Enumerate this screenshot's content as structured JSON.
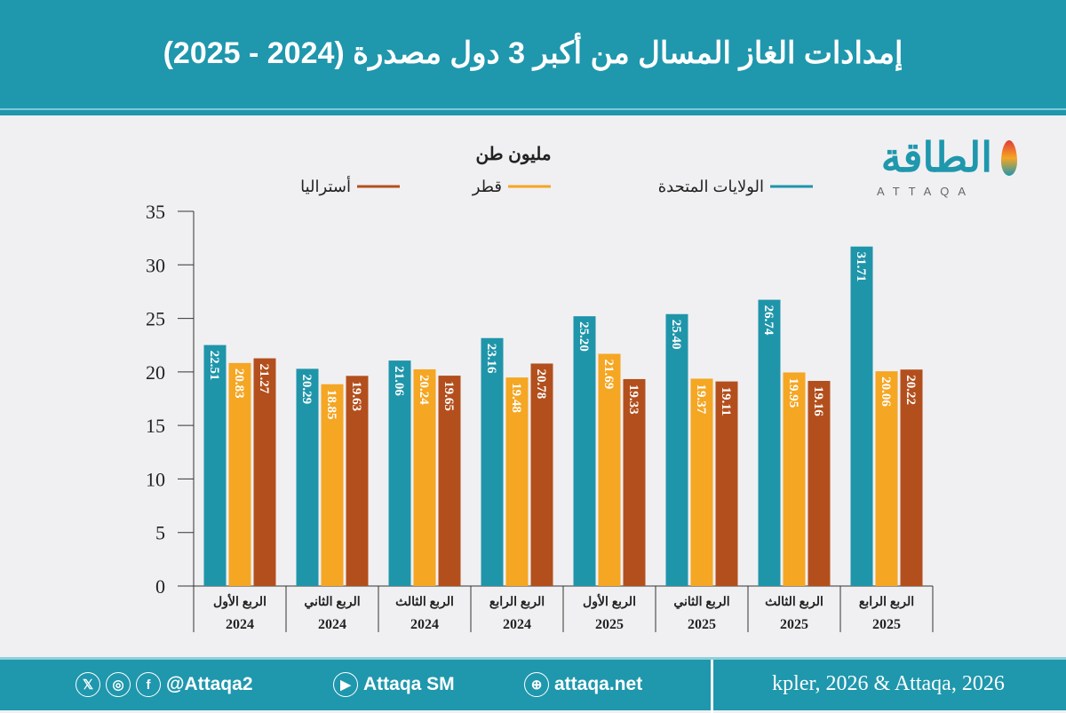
{
  "header": {
    "title": "إمدادات الغاز المسال من أكبر 3 دول مصدرة (2024 - 2025)"
  },
  "logo": {
    "arabic": "الطاقة",
    "latin": "ATTAQA"
  },
  "footer": {
    "handle": "@Attaqa2",
    "youtube": "Attaqa SM",
    "website": "attaqa.net",
    "source": "kpler, 2026 & Attaqa, 2026",
    "icons": [
      "x-icon",
      "instagram-icon",
      "facebook-icon",
      "youtube-icon",
      "globe-icon"
    ]
  },
  "chart_data": {
    "type": "bar",
    "unit_label": "مليون طن",
    "categories": [
      [
        "الربع الأول",
        "2024"
      ],
      [
        "الربع الثاني",
        "2024"
      ],
      [
        "الربع الثالث",
        "2024"
      ],
      [
        "الربع الرابع",
        "2024"
      ],
      [
        "الربع الأول",
        "2025"
      ],
      [
        "الربع الثاني",
        "2025"
      ],
      [
        "الربع الثالث",
        "2025"
      ],
      [
        "الربع الرابع",
        "2025"
      ]
    ],
    "series": [
      {
        "name": "الولايات المتحدة",
        "color": "#1f95aa",
        "values": [
          22.51,
          20.29,
          21.06,
          23.16,
          25.2,
          25.4,
          26.74,
          31.71
        ]
      },
      {
        "name": "قطر",
        "color": "#f5a623",
        "values": [
          20.83,
          18.85,
          20.24,
          19.48,
          21.69,
          19.37,
          19.95,
          20.06
        ]
      },
      {
        "name": "أستراليا",
        "color": "#b34f1d",
        "values": [
          21.27,
          19.63,
          19.65,
          20.78,
          19.33,
          19.11,
          19.16,
          20.22
        ]
      }
    ],
    "ylim": [
      0,
      35
    ],
    "yticks": [
      "0",
      "5",
      "10",
      "15",
      "20",
      "25",
      "30",
      "35"
    ],
    "legend_position": "top",
    "grid": false
  }
}
